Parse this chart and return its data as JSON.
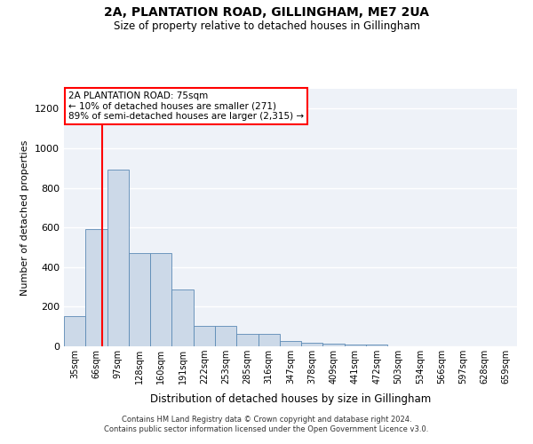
{
  "title": "2A, PLANTATION ROAD, GILLINGHAM, ME7 2UA",
  "subtitle": "Size of property relative to detached houses in Gillingham",
  "xlabel": "Distribution of detached houses by size in Gillingham",
  "ylabel": "Number of detached properties",
  "bar_color": "#ccd9e8",
  "bar_edge_color": "#5b8ab5",
  "background_color": "#eef2f8",
  "grid_color": "#ffffff",
  "categories": [
    "35sqm",
    "66sqm",
    "97sqm",
    "128sqm",
    "160sqm",
    "191sqm",
    "222sqm",
    "253sqm",
    "285sqm",
    "316sqm",
    "347sqm",
    "378sqm",
    "409sqm",
    "441sqm",
    "472sqm",
    "503sqm",
    "534sqm",
    "566sqm",
    "597sqm",
    "628sqm",
    "659sqm"
  ],
  "values": [
    152,
    590,
    893,
    470,
    470,
    285,
    105,
    105,
    62,
    62,
    28,
    20,
    15,
    10,
    10,
    0,
    0,
    0,
    0,
    0,
    0
  ],
  "ylim": [
    0,
    1300
  ],
  "yticks": [
    0,
    200,
    400,
    600,
    800,
    1000,
    1200
  ],
  "property_line_label": "2A PLANTATION ROAD: 75sqm",
  "annotation_line1": "← 10% of detached houses are smaller (271)",
  "annotation_line2": "89% of semi-detached houses are larger (2,315) →",
  "footer1": "Contains HM Land Registry data © Crown copyright and database right 2024.",
  "footer2": "Contains public sector information licensed under the Open Government Licence v3.0."
}
